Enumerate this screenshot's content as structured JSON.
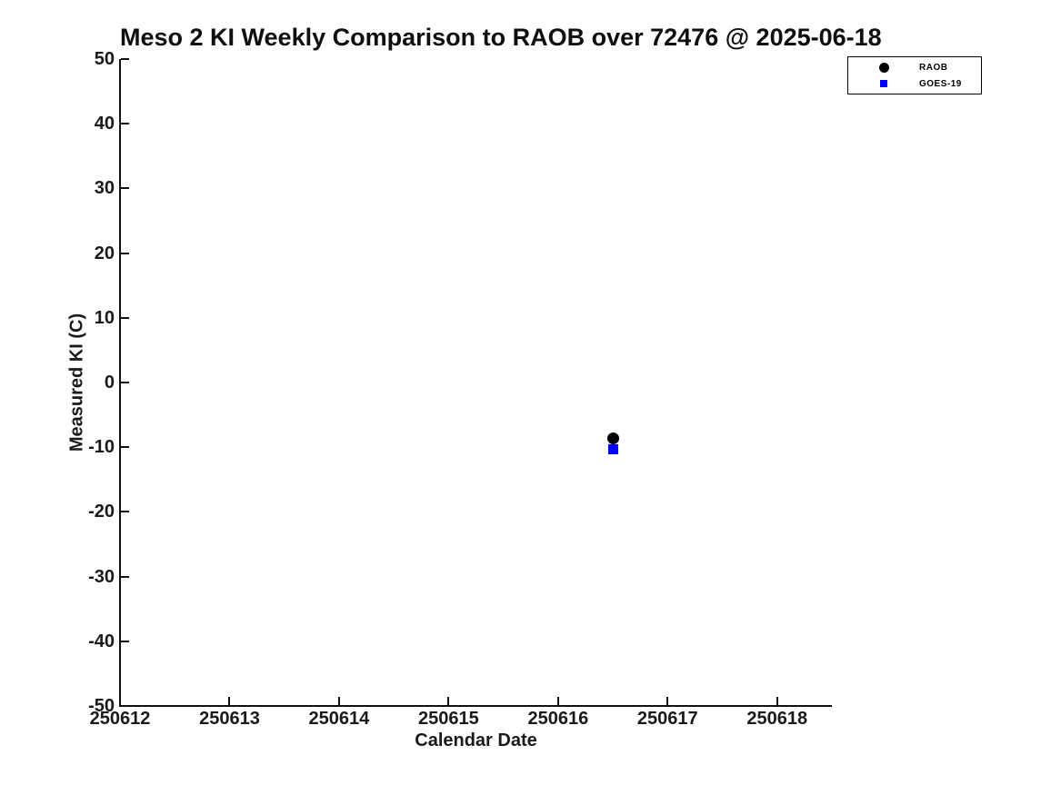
{
  "chart_data": {
    "type": "scatter",
    "title": "Meso 2 KI Weekly Comparison to RAOB over 72476 @ 2025-06-18",
    "xlabel": "Calendar Date",
    "ylabel": "Measured KI (C)",
    "xlim": [
      250612,
      250618.5
    ],
    "ylim": [
      -50,
      50
    ],
    "x_ticks": [
      250612,
      250613,
      250614,
      250615,
      250616,
      250617,
      250618
    ],
    "y_ticks": [
      -50,
      -40,
      -30,
      -20,
      -10,
      0,
      10,
      20,
      30,
      40,
      50
    ],
    "grid": false,
    "background_color": "#ffffff",
    "axis_color": "#111111",
    "legend_position": "top-right-outside",
    "legend_border_color": "#000000",
    "series": [
      {
        "name": "RAOB",
        "marker": "circle",
        "color": "#000000",
        "points": [
          {
            "x": 250616.5,
            "y": -8.7
          }
        ]
      },
      {
        "name": "GOES-19",
        "marker": "square",
        "color": "#0000ff",
        "points": [
          {
            "x": 250616.5,
            "y": -10.3
          }
        ]
      }
    ]
  }
}
